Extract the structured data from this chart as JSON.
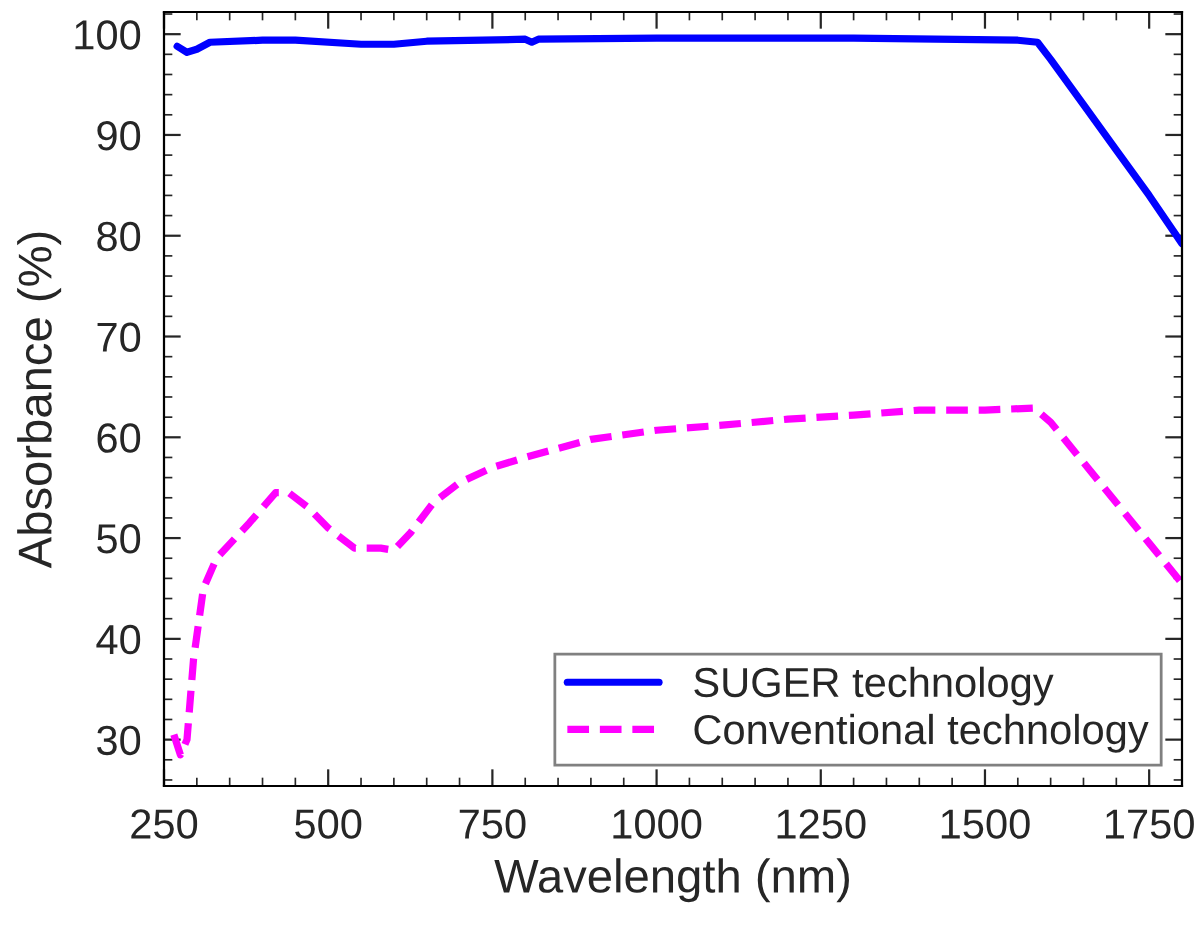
{
  "chart_data": {
    "type": "line",
    "xlabel": "Wavelength (nm)",
    "ylabel": "Absorbance (%)",
    "xlim": [
      250,
      1800
    ],
    "xticks": [
      250,
      500,
      750,
      1000,
      1250,
      1500,
      1750
    ],
    "ylim": [
      25.4,
      102.2
    ],
    "yticks": [
      30,
      40,
      50,
      60,
      70,
      80,
      90,
      100
    ],
    "grid": false,
    "legend": "bottom right",
    "series": [
      {
        "name": "SUGER technology",
        "color": "#0000ff",
        "line_style": "solid",
        "x": [
          270,
          285,
          300,
          320,
          400,
          450,
          550,
          600,
          650,
          800,
          810,
          820,
          1000,
          1300,
          1550,
          1580,
          1600,
          1650,
          1700,
          1750,
          1800
        ],
        "values": [
          98.8,
          98.2,
          98.5,
          99.2,
          99.4,
          99.4,
          99.0,
          99.0,
          99.3,
          99.5,
          99.2,
          99.5,
          99.6,
          99.6,
          99.4,
          99.2,
          97.5,
          93,
          88.5,
          84,
          79.2
        ]
      },
      {
        "name": "Conventional technology",
        "color": "#ff00ff",
        "line_style": "dashed",
        "x": [
          265,
          275,
          285,
          295,
          310,
          330,
          380,
          420,
          440,
          470,
          500,
          540,
          580,
          600,
          625,
          660,
          700,
          750,
          800,
          900,
          1000,
          1100,
          1200,
          1300,
          1400,
          1500,
          1575,
          1600,
          1650,
          1700,
          1750,
          1800
        ],
        "values": [
          30.5,
          28.5,
          30,
          38,
          45,
          48,
          51.5,
          54.5,
          54.5,
          53,
          51,
          49,
          49,
          48.8,
          50.5,
          53.5,
          55.5,
          57,
          58,
          59.8,
          60.7,
          61.2,
          61.8,
          62.2,
          62.7,
          62.7,
          62.9,
          61.5,
          57.5,
          53.5,
          49.5,
          45.5
        ]
      }
    ]
  }
}
